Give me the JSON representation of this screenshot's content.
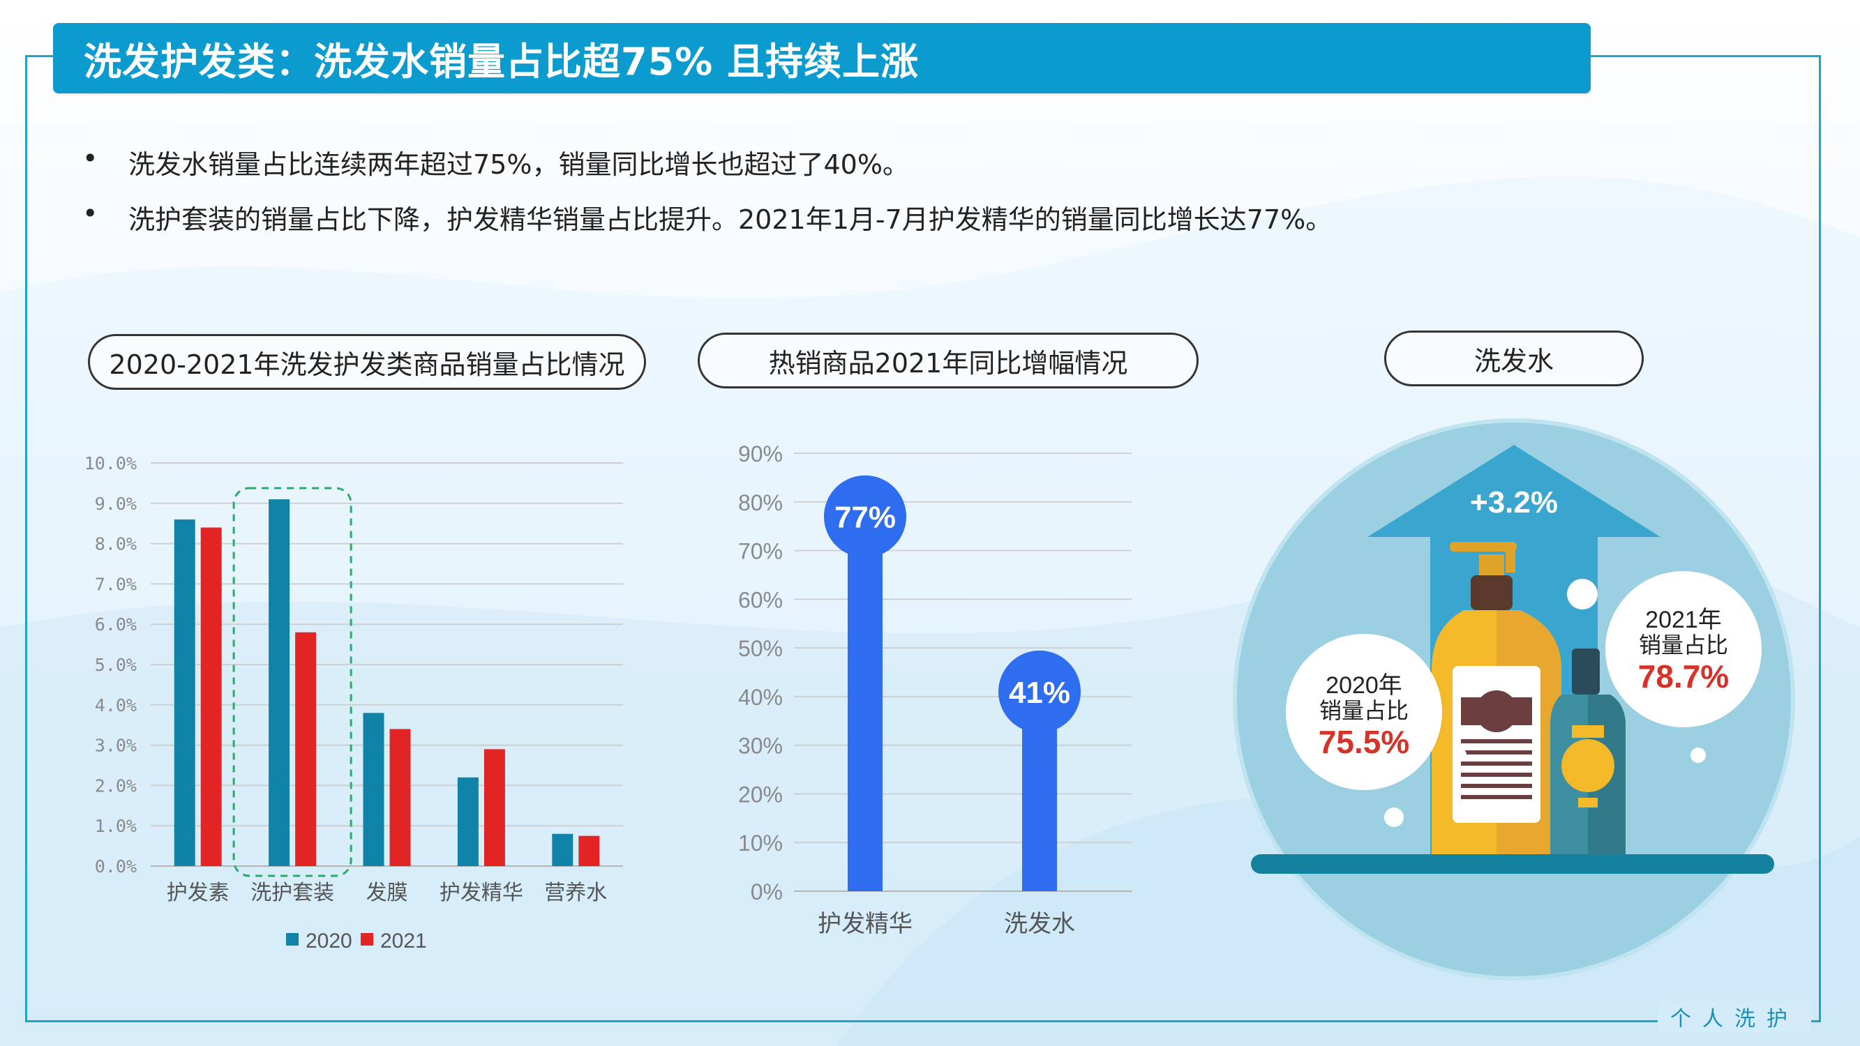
{
  "title": "洗发护发类：洗发水销量占比超75% 且持续上涨",
  "bullets": [
    "洗发水销量占比连续两年超过75%，销量同比增长也超过了40%。",
    "洗护套装的销量占比下降，护发精华销量占比提升。2021年1月-7月护发精华的销量同比增长达77%。"
  ],
  "footer": "个人洗护",
  "colors": {
    "primary": "#0b9bce",
    "teal": "#0f84a8",
    "red": "#e32424",
    "blue": "#2e6df0",
    "frame": "#1ba6c9"
  },
  "chart_data": [
    {
      "type": "bar",
      "title": "2020-2021年洗发护发类商品销量占比情况",
      "categories": [
        "护发素",
        "洗护套装",
        "发膜",
        "护发精华",
        "营养水"
      ],
      "series": [
        {
          "name": "2020",
          "values": [
            8.6,
            9.1,
            3.8,
            2.2,
            0.8
          ]
        },
        {
          "name": "2021",
          "values": [
            8.4,
            5.8,
            3.4,
            2.9,
            0.75
          ]
        }
      ],
      "ylim": [
        0,
        10
      ],
      "yticks": [
        "0.0%",
        "1.0%",
        "2.0%",
        "3.0%",
        "4.0%",
        "5.0%",
        "6.0%",
        "7.0%",
        "8.0%",
        "9.0%",
        "10.0%"
      ],
      "highlighted_category": "洗护套装",
      "grid": true,
      "legend": "bottom"
    },
    {
      "type": "bar",
      "title": "热销商品2021年同比增幅情况",
      "categories": [
        "护发精华",
        "洗发水"
      ],
      "values": [
        77,
        41
      ],
      "value_labels": [
        "77%",
        "41%"
      ],
      "ylim": [
        0,
        90
      ],
      "yticks": [
        "0%",
        "10%",
        "20%",
        "30%",
        "40%",
        "50%",
        "60%",
        "70%",
        "80%",
        "90%"
      ],
      "grid": true
    }
  ],
  "shampoo_panel": {
    "title": "洗发水",
    "increase": "+3.2%",
    "y2020": {
      "line1": "2020年",
      "line2": "销量占比",
      "value": "75.5%"
    },
    "y2021": {
      "line1": "2021年",
      "line2": "销量占比",
      "value": "78.7%"
    }
  }
}
